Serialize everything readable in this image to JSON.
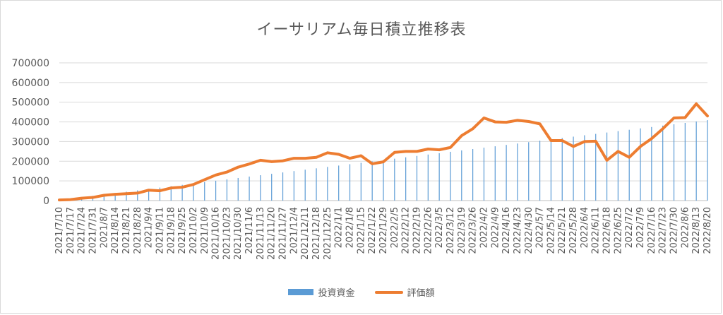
{
  "chart_data": {
    "type": "bar",
    "title": "イーサリアム毎日積立推移表",
    "xlabel": "",
    "ylabel": "",
    "ylim": [
      0,
      700000
    ],
    "yticks": [
      "0",
      "100000",
      "200000",
      "300000",
      "400000",
      "500000",
      "600000",
      "700000"
    ],
    "grid": true,
    "legend_position": "bottom",
    "categories": [
      "2021/7/10",
      "2021/7/17",
      "2021/7/24",
      "2021/7/31",
      "2021/8/7",
      "2021/8/14",
      "2021/8/21",
      "2021/8/28",
      "2021/9/4",
      "2021/9/11",
      "2021/9/18",
      "2021/9/25",
      "2021/10/2",
      "2021/10/9",
      "2021/10/16",
      "2021/10/23",
      "2021/10/30",
      "2021/11/6",
      "2021/11/13",
      "2021/11/20",
      "2021/11/27",
      "2021/12/4",
      "2021/12/11",
      "2021/12/18",
      "2021/12/25",
      "2022/1/1",
      "2022/1/8",
      "2022/1/15",
      "2022/1/22",
      "2022/1/29",
      "2022/2/5",
      "2022/2/12",
      "2022/2/19",
      "2022/2/26",
      "2022/3/5",
      "2022/3/12",
      "2022/3/19",
      "2022/3/26",
      "2022/4/2",
      "2022/4/9",
      "2022/4/16",
      "2022/4/23",
      "2022/4/30",
      "2022/5/7",
      "2022/5/14",
      "2022/5/21",
      "2022/5/28",
      "2022/6/4",
      "2022/6/11",
      "2022/6/18",
      "2022/6/25",
      "2022/7/2",
      "2022/7/9",
      "2022/7/16",
      "2022/7/23",
      "2022/7/30",
      "2022/8/6",
      "2022/8/13",
      "2022/8/20"
    ],
    "series": [
      {
        "name": "投資資金",
        "kind": "bar",
        "color": "#5b9bd5",
        "values": [
          3000,
          10000,
          17000,
          24000,
          31000,
          38000,
          45000,
          52000,
          59000,
          66000,
          73000,
          80000,
          87000,
          94000,
          101000,
          108000,
          115000,
          122000,
          129000,
          136000,
          143000,
          150000,
          157000,
          164000,
          171000,
          178000,
          185000,
          192000,
          199000,
          206000,
          213000,
          220000,
          227000,
          234000,
          241000,
          248000,
          255000,
          262000,
          269000,
          276000,
          283000,
          290000,
          297000,
          304000,
          311000,
          318000,
          325000,
          332000,
          339000,
          346000,
          353000,
          360000,
          367000,
          374000,
          381000,
          388000,
          395000,
          402000,
          409000
        ]
      },
      {
        "name": "評価額",
        "kind": "line",
        "color": "#ed7d31",
        "values": [
          3000,
          5000,
          12000,
          16000,
          27000,
          32000,
          35000,
          38000,
          53000,
          50000,
          64000,
          68000,
          82000,
          106000,
          130000,
          145000,
          170000,
          186000,
          205000,
          198000,
          202000,
          215000,
          215000,
          220000,
          243000,
          235000,
          215000,
          228000,
          187000,
          197000,
          245000,
          250000,
          250000,
          262000,
          258000,
          270000,
          330000,
          365000,
          420000,
          400000,
          398000,
          408000,
          402000,
          390000,
          305000,
          305000,
          275000,
          300000,
          302000,
          205000,
          250000,
          220000,
          275000,
          315000,
          365000,
          420000,
          422000,
          492000,
          430000
        ]
      }
    ]
  }
}
